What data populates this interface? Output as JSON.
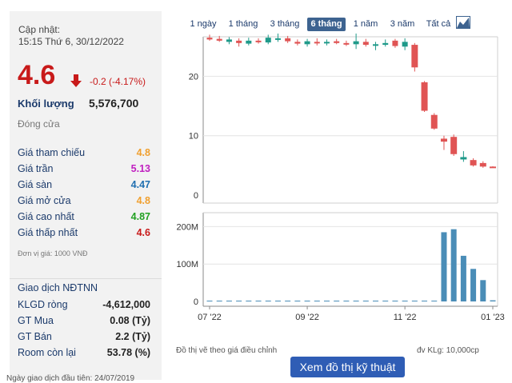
{
  "info": {
    "updated_label": "Cập nhật:",
    "updated_time": "15:15 Thứ 6, 30/12/2022",
    "price": "4.6",
    "change": "-0.2 (-4.17%)",
    "volume_label": "Khối lượng",
    "volume_value": "5,576,700",
    "status": "Đóng cửa",
    "rows": [
      {
        "label": "Giá tham chiếu",
        "value": "4.8",
        "color": "#f0a030"
      },
      {
        "label": "Giá trần",
        "value": "5.13",
        "color": "#c020c0"
      },
      {
        "label": "Giá sàn",
        "value": "4.47",
        "color": "#1f6fb0"
      },
      {
        "label": "Giá mở cửa",
        "value": "4.8",
        "color": "#f0a030"
      },
      {
        "label": "Giá cao nhất",
        "value": "4.87",
        "color": "#22a022"
      },
      {
        "label": "Giá thấp nhất",
        "value": "4.6",
        "color": "#c81a1a"
      }
    ],
    "unit_note": "Đơn vị giá: 1000 VNĐ",
    "foreign_title": "Giao dịch NĐTNN",
    "foreign_rows": [
      {
        "label": "KLGD ròng",
        "value": "-4,612,000"
      },
      {
        "label": "GT Mua",
        "value": "0.08 (Tỷ)"
      },
      {
        "label": "GT Bán",
        "value": "2.2 (Tỷ)"
      },
      {
        "label": "Room còn lại",
        "value": "53.78 (%)"
      }
    ],
    "bottom_note": "Ngày giao dịch đầu tiên: 24/07/2019"
  },
  "tabs": [
    {
      "label": "1 ngày",
      "active": false
    },
    {
      "label": "1 tháng",
      "active": false
    },
    {
      "label": "3 tháng",
      "active": false
    },
    {
      "label": "6 tháng",
      "active": true
    },
    {
      "label": "1 năm",
      "active": false
    },
    {
      "label": "3 năm",
      "active": false
    },
    {
      "label": "Tất cả",
      "active": false
    }
  ],
  "chart_type_icon": "area-chart-icon",
  "notes": {
    "adjusted": "Đồ thị vẽ theo giá điều chỉnh",
    "volume_unit": "đv KLg: 10,000cp",
    "tech_button": "Xem đồ thị kỹ thuật"
  },
  "colors": {
    "up": "#1f9a8a",
    "down": "#e05454",
    "volume": "#4a8db7",
    "tab_active": "#3d6390",
    "button": "#2f5db5"
  },
  "chart_data": [
    {
      "type": "candlestick",
      "x_ticks": [
        "07 '22",
        "09 '22",
        "11 '22",
        "01 '23"
      ],
      "y_ticks": [
        0,
        10,
        20
      ],
      "ylim": [
        0,
        28
      ],
      "candles": [
        {
          "o": 26.5,
          "h": 27.0,
          "l": 26.0,
          "c": 26.2
        },
        {
          "o": 26.3,
          "h": 26.8,
          "l": 25.8,
          "c": 26.0
        },
        {
          "o": 25.8,
          "h": 26.6,
          "l": 25.4,
          "c": 26.2
        },
        {
          "o": 26.0,
          "h": 26.4,
          "l": 25.0,
          "c": 25.6
        },
        {
          "o": 25.5,
          "h": 26.5,
          "l": 25.2,
          "c": 26.0
        },
        {
          "o": 26.0,
          "h": 26.4,
          "l": 25.5,
          "c": 25.8
        },
        {
          "o": 25.7,
          "h": 27.0,
          "l": 25.4,
          "c": 26.5
        },
        {
          "o": 26.3,
          "h": 27.2,
          "l": 25.8,
          "c": 26.4
        },
        {
          "o": 26.4,
          "h": 26.8,
          "l": 25.6,
          "c": 25.9
        },
        {
          "o": 25.8,
          "h": 26.2,
          "l": 25.2,
          "c": 25.5
        },
        {
          "o": 25.4,
          "h": 26.3,
          "l": 25.0,
          "c": 25.9
        },
        {
          "o": 25.8,
          "h": 26.4,
          "l": 25.2,
          "c": 25.6
        },
        {
          "o": 25.6,
          "h": 26.2,
          "l": 25.2,
          "c": 25.8
        },
        {
          "o": 25.9,
          "h": 26.3,
          "l": 25.4,
          "c": 25.6
        },
        {
          "o": 25.6,
          "h": 26.0,
          "l": 25.1,
          "c": 25.4
        },
        {
          "o": 25.4,
          "h": 27.2,
          "l": 24.6,
          "c": 25.9
        },
        {
          "o": 25.8,
          "h": 26.3,
          "l": 25.0,
          "c": 25.3
        },
        {
          "o": 25.2,
          "h": 25.8,
          "l": 24.4,
          "c": 25.4
        },
        {
          "o": 25.3,
          "h": 26.2,
          "l": 25.0,
          "c": 25.6
        },
        {
          "o": 26.0,
          "h": 26.3,
          "l": 24.8,
          "c": 25.1
        },
        {
          "o": 25.0,
          "h": 26.4,
          "l": 24.4,
          "c": 25.8
        },
        {
          "o": 25.3,
          "h": 25.6,
          "l": 20.8,
          "c": 21.5
        },
        {
          "o": 19.0,
          "h": 19.2,
          "l": 14.0,
          "c": 14.2
        },
        {
          "o": 13.5,
          "h": 13.8,
          "l": 11.0,
          "c": 11.2
        },
        {
          "o": 9.5,
          "h": 10.0,
          "l": 7.6,
          "c": 9.0
        },
        {
          "o": 9.8,
          "h": 10.2,
          "l": 6.6,
          "c": 6.9
        },
        {
          "o": 6.0,
          "h": 7.4,
          "l": 5.6,
          "c": 6.4
        },
        {
          "o": 5.9,
          "h": 6.2,
          "l": 4.8,
          "c": 5.0
        },
        {
          "o": 5.4,
          "h": 5.7,
          "l": 4.6,
          "c": 4.8
        },
        {
          "o": 4.8,
          "h": 4.87,
          "l": 4.6,
          "c": 4.6
        }
      ]
    },
    {
      "type": "bar",
      "series_name": "Khối lượng",
      "y_ticks_labels": [
        "0",
        "100M",
        "200M"
      ],
      "ylim": [
        0,
        250
      ],
      "values": [
        0.5,
        0.3,
        0.3,
        0.2,
        0.3,
        0.3,
        0.4,
        0.3,
        0.2,
        0.2,
        0.3,
        0.2,
        0.2,
        0.2,
        1.5,
        0.5,
        0.2,
        0.2,
        0.3,
        0.2,
        0.5,
        0.6,
        0.8,
        1.0,
        185,
        193,
        122,
        87,
        57,
        3
      ]
    }
  ]
}
